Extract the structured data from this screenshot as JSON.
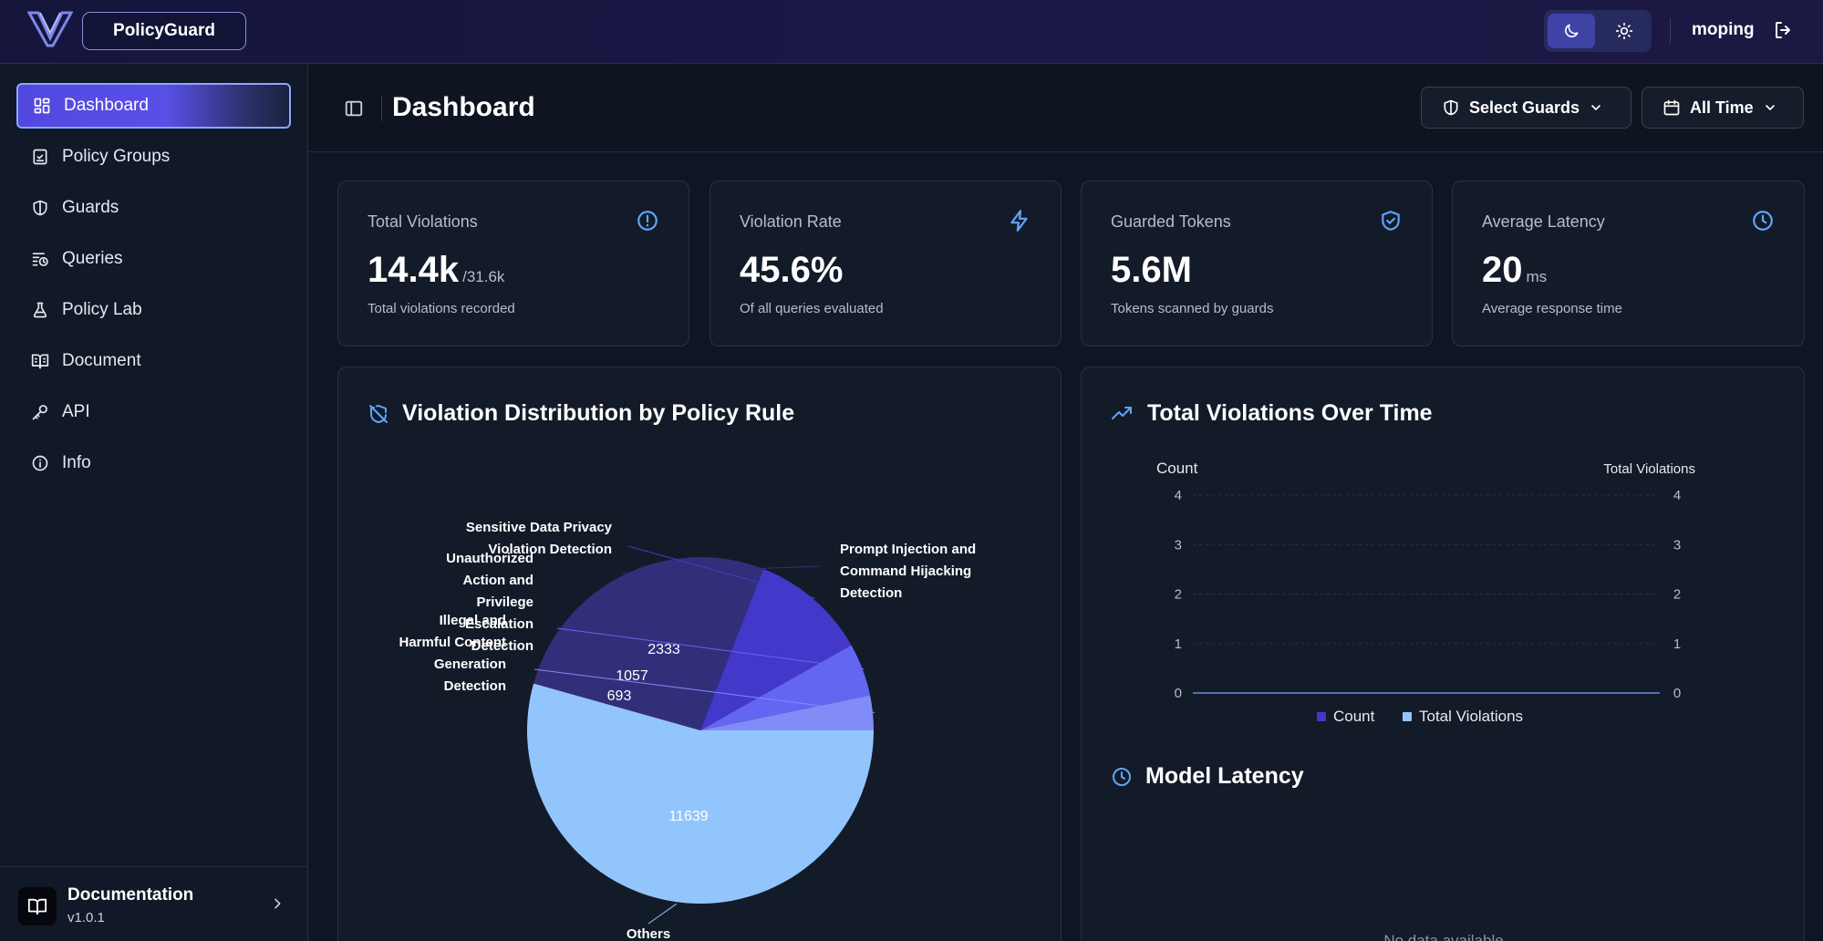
{
  "app": {
    "brand": "PolicyGuard",
    "user": "moping"
  },
  "sidebar": {
    "items": [
      {
        "label": "Dashboard",
        "icon": "dashboard-icon",
        "active": true
      },
      {
        "label": "Policy Groups",
        "icon": "clipboard-check-icon"
      },
      {
        "label": "Guards",
        "icon": "shield-icon"
      },
      {
        "label": "Queries",
        "icon": "list-clock-icon"
      },
      {
        "label": "Policy Lab",
        "icon": "flask-icon"
      },
      {
        "label": "Document",
        "icon": "book-icon"
      },
      {
        "label": "API",
        "icon": "key-icon"
      },
      {
        "label": "Info",
        "icon": "info-icon"
      }
    ],
    "footer": {
      "title": "Documentation",
      "version": "v1.0.1"
    }
  },
  "header": {
    "title": "Dashboard",
    "guards_select": "Select Guards",
    "time_select": "All Time"
  },
  "stats": [
    {
      "label": "Total Violations",
      "value": "14.4k",
      "suffix": "/31.6k",
      "desc": "Total violations recorded",
      "icon": "alert-circle-icon"
    },
    {
      "label": "Violation Rate",
      "value": "45.6%",
      "suffix": "",
      "desc": "Of all queries evaluated",
      "icon": "lightning-icon"
    },
    {
      "label": "Guarded Tokens",
      "value": "5.6M",
      "suffix": "",
      "desc": "Tokens scanned by guards",
      "icon": "shield-check-icon"
    },
    {
      "label": "Average Latency",
      "value": "20",
      "suffix": "ms",
      "desc": "Average response time",
      "icon": "clock-icon"
    }
  ],
  "panels": {
    "distribution_title": "Violation Distribution by Policy Rule",
    "timeline_title": "Total Violations Over Time",
    "latency_title": "Model Latency",
    "latency_empty": "No data available"
  },
  "colors": {
    "accent": "#5b4fe6",
    "slice_prompt": "#322f7a",
    "slice_privacy": "#4338ca",
    "slice_unauth": "#6366f1",
    "slice_illegal": "#818cf8",
    "slice_others": "#93c5fd",
    "line_count": "#4338ca",
    "line_total": "#93c5fd"
  },
  "chart_data": [
    {
      "type": "pie",
      "title": "Violation Distribution by Policy Rule",
      "slices": [
        {
          "label": "Prompt Injection and Command Hijacking Detection",
          "value": 5691
        },
        {
          "label": "Sensitive Data Privacy Violation Detection",
          "value": 2333
        },
        {
          "label": "Unauthorized Action and Privilege Escalation Detection",
          "value": 1057
        },
        {
          "label": "Illegal and Harmful Content Generation Detection",
          "value": 693
        },
        {
          "label": "Others",
          "value": 11639
        }
      ]
    },
    {
      "type": "line",
      "title": "Total Violations Over Time",
      "ylabel_left": "Count",
      "ylabel_right": "Total Violations",
      "yticks": [
        0,
        1,
        2,
        3,
        4
      ],
      "ylim": [
        0,
        4
      ],
      "series": [
        {
          "name": "Count",
          "values": []
        },
        {
          "name": "Total Violations",
          "values": []
        }
      ],
      "legend": "bottom"
    }
  ]
}
